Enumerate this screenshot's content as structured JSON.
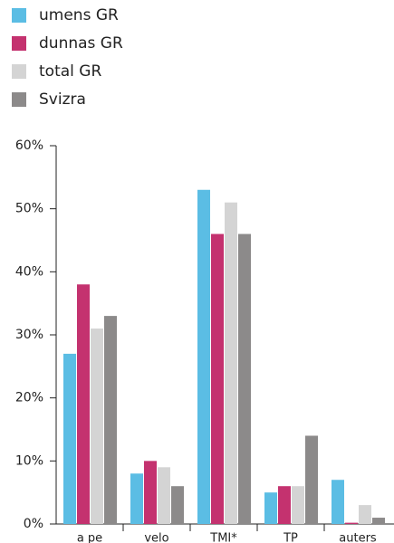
{
  "chart_data": {
    "type": "bar",
    "categories": [
      "a pe",
      "velo",
      "TMI*",
      "TP",
      "auters"
    ],
    "series": [
      {
        "name": "umens GR",
        "color": "#5bbde4",
        "values": [
          27,
          8,
          53,
          5,
          7
        ]
      },
      {
        "name": "dunnas GR",
        "color": "#c4326f",
        "values": [
          38,
          10,
          46,
          6,
          0.2
        ]
      },
      {
        "name": "total GR",
        "color": "#d4d4d4",
        "values": [
          31,
          9,
          51,
          6,
          3
        ]
      },
      {
        "name": "Svizra",
        "color": "#8c8a8a",
        "values": [
          33,
          6,
          46,
          14,
          1
        ]
      }
    ],
    "ylim": [
      0,
      60
    ],
    "yticks": [
      {
        "value": 0,
        "label": "0%"
      },
      {
        "value": 10,
        "label": "10%"
      },
      {
        "value": 20,
        "label": "20%"
      },
      {
        "value": 30,
        "label": "30%"
      },
      {
        "value": 40,
        "label": "40%"
      },
      {
        "value": 50,
        "label": "50%"
      },
      {
        "value": 60,
        "label": "60%"
      }
    ],
    "legend": "top-left"
  }
}
